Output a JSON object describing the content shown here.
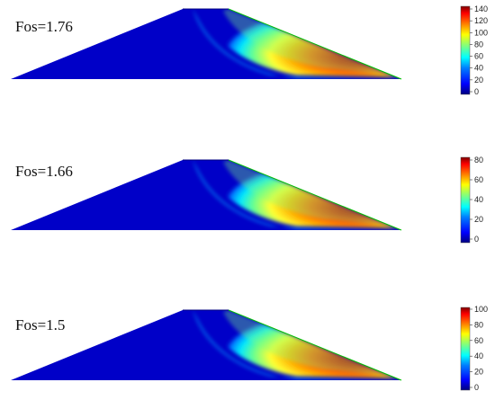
{
  "panels": [
    {
      "fos_label": "Fos=1.76",
      "colorbar_ticks": [
        "140",
        "120",
        "100",
        "80",
        "60",
        "40",
        "20",
        "0"
      ]
    },
    {
      "fos_label": "Fos=1.66",
      "colorbar_ticks": [
        "80",
        "60",
        "40",
        "20",
        "0"
      ]
    },
    {
      "fos_label": "Fos=1.5",
      "colorbar_ticks": [
        "100",
        "80",
        "60",
        "40",
        "20",
        "0"
      ]
    }
  ],
  "colormap": [
    "#00007f",
    "#0000ff",
    "#007fff",
    "#00ffff",
    "#7fff7f",
    "#ffff00",
    "#ff7f00",
    "#ff0000",
    "#7f0000"
  ]
}
